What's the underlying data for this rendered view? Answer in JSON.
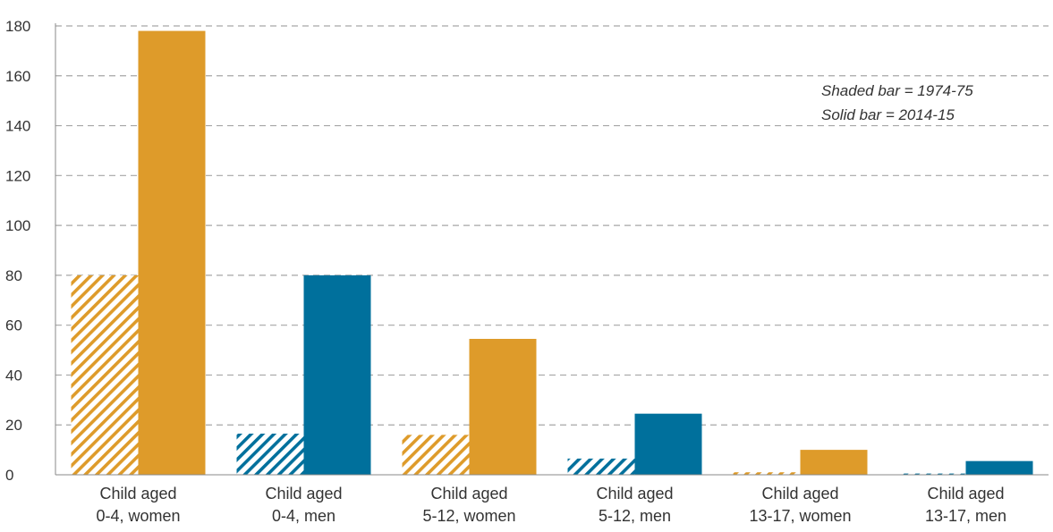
{
  "chart_data": {
    "type": "bar",
    "categories": [
      [
        "Child aged",
        "0-4, women"
      ],
      [
        "Child aged",
        "0-4, men"
      ],
      [
        "Child aged",
        "5-12, women"
      ],
      [
        "Child aged",
        "5-12, men"
      ],
      [
        "Child aged",
        "13-17, women"
      ],
      [
        "Child aged",
        "13-17, men"
      ]
    ],
    "series": [
      {
        "values": [
          80,
          16.5,
          16,
          6.5,
          1,
          0.5
        ],
        "style": "shaded"
      },
      {
        "values": [
          178,
          80,
          54.5,
          24.5,
          10,
          5.5
        ],
        "style": "solid"
      }
    ],
    "bar_colors": [
      "#DE9B2A",
      "#00709C",
      "#DE9B2A",
      "#00709C",
      "#DE9B2A",
      "#00709C"
    ],
    "y_ticks": [
      0,
      20,
      40,
      60,
      80,
      100,
      120,
      140,
      160,
      180
    ],
    "ylim": [
      0,
      180
    ],
    "grid": true,
    "annotation": [
      "Shaded bar = 1974-75",
      "Solid bar = 2014-15"
    ],
    "title": "",
    "xlabel": "",
    "ylabel": ""
  }
}
